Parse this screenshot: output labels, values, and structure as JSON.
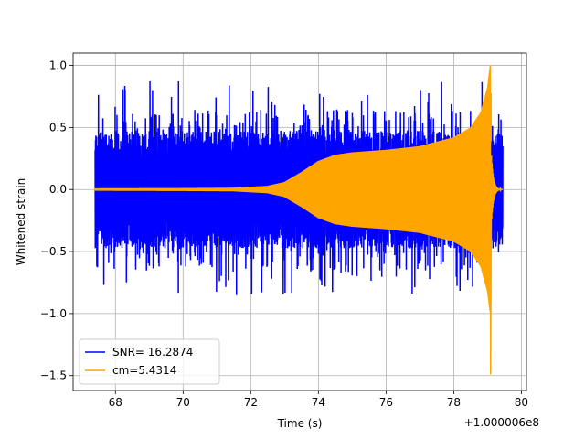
{
  "chart_data": {
    "type": "line",
    "title": "",
    "xlabel": "Time (s)",
    "ylabel": "Whitened strain",
    "x_offset_label": "+1.000006e8",
    "xlim": [
      66.75,
      80.15
    ],
    "ylim": [
      -1.62,
      1.1
    ],
    "x_ticks": [
      68,
      70,
      72,
      74,
      76,
      78,
      80
    ],
    "x_tick_labels": [
      "68",
      "70",
      "72",
      "74",
      "76",
      "78",
      "80"
    ],
    "y_ticks": [
      -1.5,
      -1.0,
      -0.5,
      0.0,
      0.5,
      1.0
    ],
    "y_tick_labels": [
      "−1.5",
      "−1.0",
      "−0.5",
      "0.0",
      "0.5",
      "1.0"
    ],
    "grid": true,
    "legend_position": "lower-left",
    "series": [
      {
        "name": "SNR= 16.2874",
        "color": "#0000ff",
        "kind": "noise",
        "x_range": [
          67.4,
          79.45
        ],
        "typical_upper": 0.45,
        "typical_lower": -0.45,
        "peak_max": 0.88,
        "peak_min": -0.88
      },
      {
        "name": "cm=5.4314",
        "color": "#ffa500",
        "kind": "chirp",
        "x_range": [
          67.4,
          79.45
        ],
        "envelope_points": [
          [
            67.4,
            0.01
          ],
          [
            70.0,
            0.012
          ],
          [
            71.5,
            0.015
          ],
          [
            72.5,
            0.03
          ],
          [
            73.0,
            0.06
          ],
          [
            73.5,
            0.14
          ],
          [
            74.0,
            0.23
          ],
          [
            74.5,
            0.28
          ],
          [
            75.0,
            0.3
          ],
          [
            76.0,
            0.32
          ],
          [
            77.0,
            0.35
          ],
          [
            78.0,
            0.42
          ],
          [
            78.5,
            0.5
          ],
          [
            78.8,
            0.62
          ],
          [
            79.0,
            0.82
          ],
          [
            79.08,
            1.0
          ]
        ],
        "peak_max": 1.0,
        "peak_min": -1.49,
        "peak_x": 79.08,
        "ringdown_end": 79.4
      }
    ]
  }
}
